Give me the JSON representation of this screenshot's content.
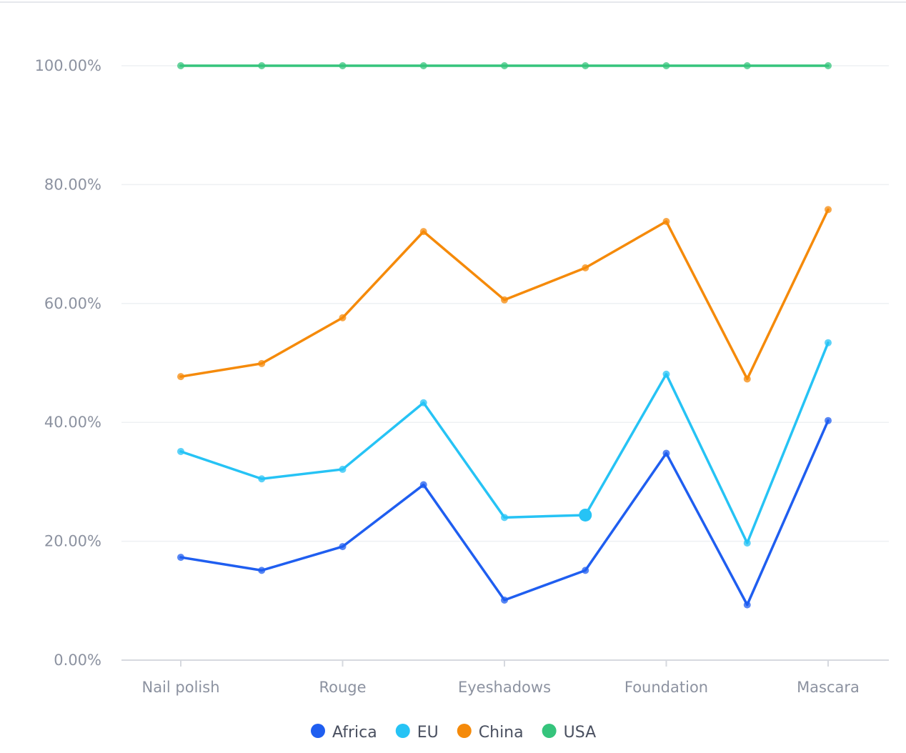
{
  "chart_data": {
    "type": "line",
    "categories": [
      "Nail polish",
      "",
      "Rouge",
      "",
      "Eyeshadows",
      "",
      "Foundation",
      "",
      "Mascara"
    ],
    "x_tick_labels": [
      "Nail polish",
      "Rouge",
      "Eyeshadows",
      "Foundation",
      "Mascara"
    ],
    "y_ticks": [
      "0.00%",
      "20.00%",
      "40.00%",
      "60.00%",
      "80.00%",
      "100.00%"
    ],
    "ylim": [
      0,
      100
    ],
    "grid": true,
    "legend_position": "bottom",
    "series": [
      {
        "name": "Africa",
        "color": "#1f5ef0",
        "values": [
          17.3,
          15.1,
          19.1,
          29.5,
          10.1,
          15.1,
          34.8,
          9.3,
          40.3
        ]
      },
      {
        "name": "EU",
        "color": "#26c3f5",
        "values": [
          35.1,
          30.5,
          32.1,
          43.3,
          24.0,
          24.4,
          48.1,
          19.7,
          53.4
        ]
      },
      {
        "name": "China",
        "color": "#f58a0a",
        "values": [
          47.7,
          49.9,
          57.6,
          72.1,
          60.6,
          66.0,
          73.8,
          47.3,
          75.8
        ]
      },
      {
        "name": "USA",
        "color": "#35c47c",
        "values": [
          100,
          100,
          100,
          100,
          100,
          100,
          100,
          100,
          100
        ]
      }
    ],
    "highlighted_point": {
      "series": "EU",
      "index": 5
    }
  }
}
